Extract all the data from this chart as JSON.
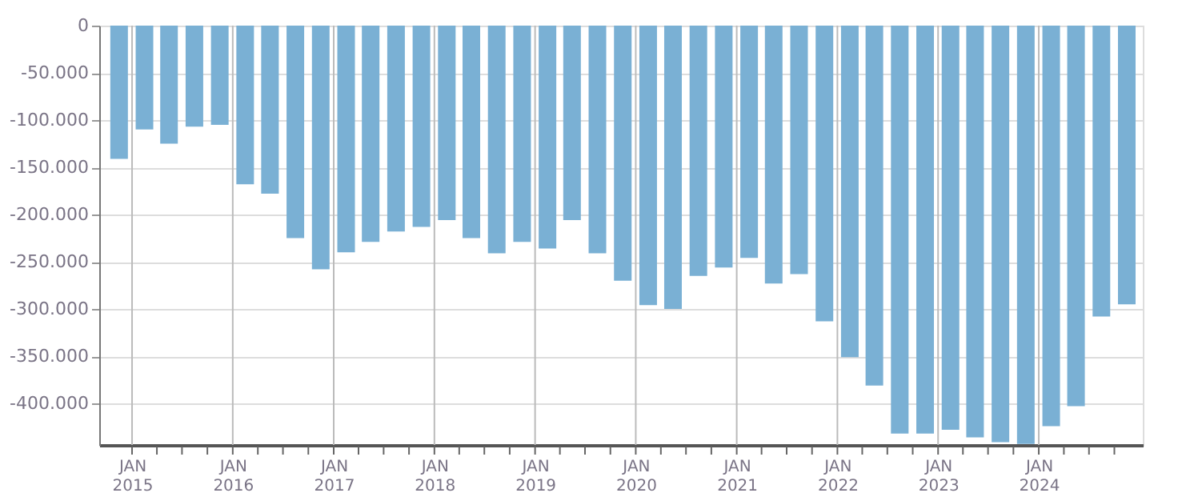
{
  "chart_data": {
    "type": "bar",
    "color": "#7ab0d4",
    "x": [
      "2014-11-15",
      "2015-02-15",
      "2015-05-15",
      "2015-08-15",
      "2015-11-15",
      "2016-02-15",
      "2016-05-15",
      "2016-08-15",
      "2016-11-15",
      "2017-02-15",
      "2017-05-15",
      "2017-08-15",
      "2017-11-15",
      "2018-02-15",
      "2018-05-15",
      "2018-08-15",
      "2018-11-15",
      "2019-02-15",
      "2019-05-15",
      "2019-08-15",
      "2019-11-15",
      "2020-02-15",
      "2020-05-15",
      "2020-08-15",
      "2020-11-15",
      "2021-02-15",
      "2021-05-15",
      "2021-08-15",
      "2021-11-15",
      "2022-02-15",
      "2022-05-15",
      "2022-08-15",
      "2022-11-15",
      "2023-02-15",
      "2023-05-15",
      "2023-08-15",
      "2023-11-15",
      "2024-02-15",
      "2024-05-15",
      "2024-08-15",
      "2024-11-15"
    ],
    "values": [
      -141000,
      -110000,
      -125000,
      -107000,
      -105000,
      -168000,
      -178000,
      -225000,
      -258000,
      -240000,
      -229000,
      -218000,
      -213000,
      -206000,
      -225000,
      -241000,
      -229000,
      -236000,
      -206000,
      -241000,
      -270000,
      -296000,
      -300000,
      -265000,
      -256000,
      -246000,
      -273000,
      -263000,
      -313000,
      -351000,
      -381000,
      -432000,
      -432000,
      -428000,
      -436000,
      -441000,
      -443000,
      -424000,
      -403000,
      -308000,
      -295000
    ],
    "xlim": [
      "2014-10-03",
      "2024-12-14"
    ],
    "xticks": [
      {
        "value": "2015-01-01",
        "label": "JAN 2015"
      },
      {
        "value": "2015-04-01",
        "label": null
      },
      {
        "value": "2015-07-01",
        "label": null
      },
      {
        "value": "2015-10-01",
        "label": null
      },
      {
        "value": "2016-01-01",
        "label": "JAN 2016"
      },
      {
        "value": "2016-04-01",
        "label": null
      },
      {
        "value": "2016-07-01",
        "label": null
      },
      {
        "value": "2016-10-01",
        "label": null
      },
      {
        "value": "2017-01-01",
        "label": "JAN 2017"
      },
      {
        "value": "2017-04-01",
        "label": null
      },
      {
        "value": "2017-07-01",
        "label": null
      },
      {
        "value": "2017-10-01",
        "label": null
      },
      {
        "value": "2018-01-01",
        "label": "JAN 2018"
      },
      {
        "value": "2018-04-01",
        "label": null
      },
      {
        "value": "2018-07-01",
        "label": null
      },
      {
        "value": "2018-10-01",
        "label": null
      },
      {
        "value": "2019-01-01",
        "label": "JAN 2019"
      },
      {
        "value": "2019-04-01",
        "label": null
      },
      {
        "value": "2019-07-01",
        "label": null
      },
      {
        "value": "2019-10-01",
        "label": null
      },
      {
        "value": "2020-01-01",
        "label": "JAN 2020"
      },
      {
        "value": "2020-04-01",
        "label": null
      },
      {
        "value": "2020-07-01",
        "label": null
      },
      {
        "value": "2020-10-01",
        "label": null
      },
      {
        "value": "2021-01-01",
        "label": "JAN 2021"
      },
      {
        "value": "2021-04-01",
        "label": null
      },
      {
        "value": "2021-07-01",
        "label": null
      },
      {
        "value": "2021-10-01",
        "label": null
      },
      {
        "value": "2022-01-01",
        "label": "JAN 2022"
      },
      {
        "value": "2022-04-01",
        "label": null
      },
      {
        "value": "2022-07-01",
        "label": null
      },
      {
        "value": "2022-10-01",
        "label": null
      },
      {
        "value": "2023-01-01",
        "label": "JAN 2023"
      },
      {
        "value": "2023-04-01",
        "label": null
      },
      {
        "value": "2023-07-01",
        "label": null
      },
      {
        "value": "2023-10-01",
        "label": null
      },
      {
        "value": "2024-01-01",
        "label": "JAN 2024"
      },
      {
        "value": "2024-04-01",
        "label": null
      },
      {
        "value": "2024-07-01",
        "label": null
      },
      {
        "value": "2024-10-01",
        "label": null
      }
    ],
    "ylim": [
      -444000,
      0
    ],
    "yticks": [
      0,
      {
        "value": -50000,
        "label": "-50.000"
      },
      {
        "value": -100000,
        "label": "-100.000"
      },
      {
        "value": -150000,
        "label": "-150.000"
      },
      {
        "value": -200000,
        "label": "-200.000"
      },
      {
        "value": -250000,
        "label": "-250.000"
      },
      {
        "value": -300000,
        "label": "-300.000"
      },
      {
        "value": -350000,
        "label": "-350.000"
      },
      {
        "value": -400000,
        "label": "-400.000"
      }
    ],
    "grid": true
  }
}
